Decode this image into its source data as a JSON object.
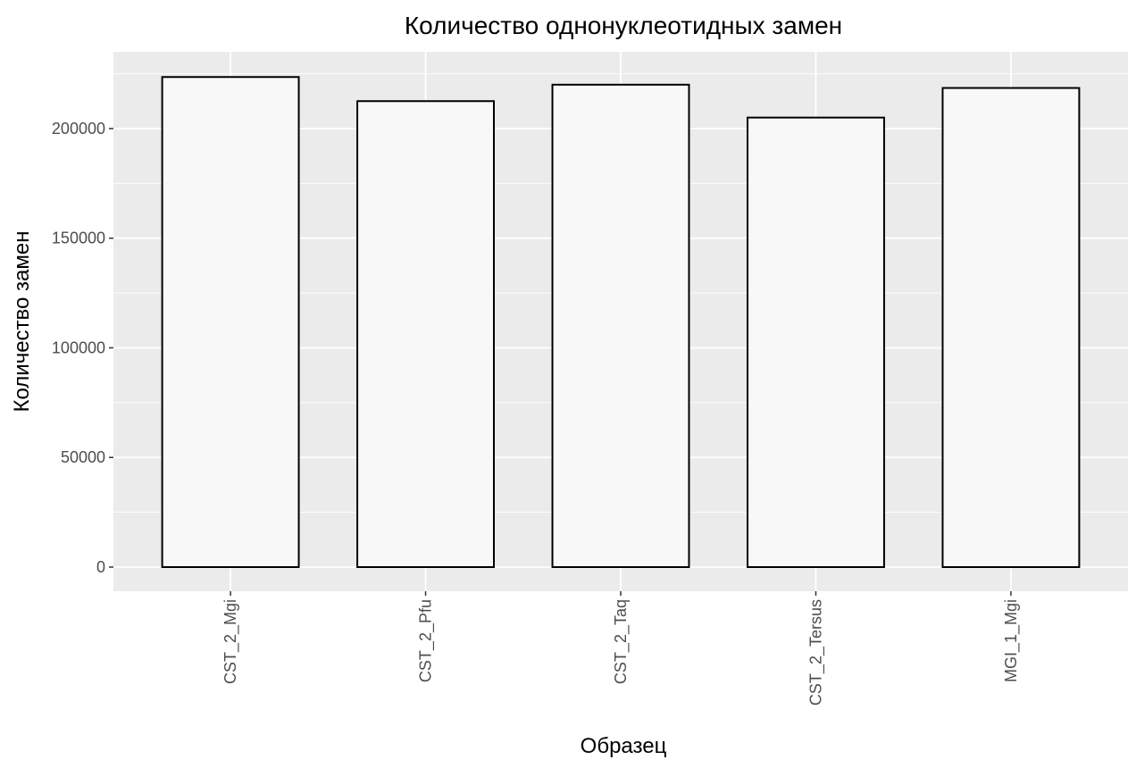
{
  "chart_data": {
    "type": "bar",
    "title": "Количество однонуклеотидных замен",
    "xlabel": "Образец",
    "ylabel": "Количество замен",
    "categories": [
      "CST_2_Mgi",
      "CST_2_Pfu",
      "CST_2_Taq",
      "CST_2_Tersus",
      "MGI_1_Mgi"
    ],
    "values": [
      223500,
      212500,
      220000,
      205000,
      218500
    ],
    "yticks": [
      0,
      50000,
      100000,
      150000,
      200000
    ],
    "ylim": [
      -11000,
      235000
    ],
    "grid": true,
    "legend": "none",
    "colors": {
      "panel_background": "#ebebeb",
      "grid": "#ffffff",
      "bar_fill": "#f8f8f8",
      "bar_outline": "#000000",
      "tick_text": "#4d4d4d",
      "tick_mark": "#333333"
    }
  }
}
